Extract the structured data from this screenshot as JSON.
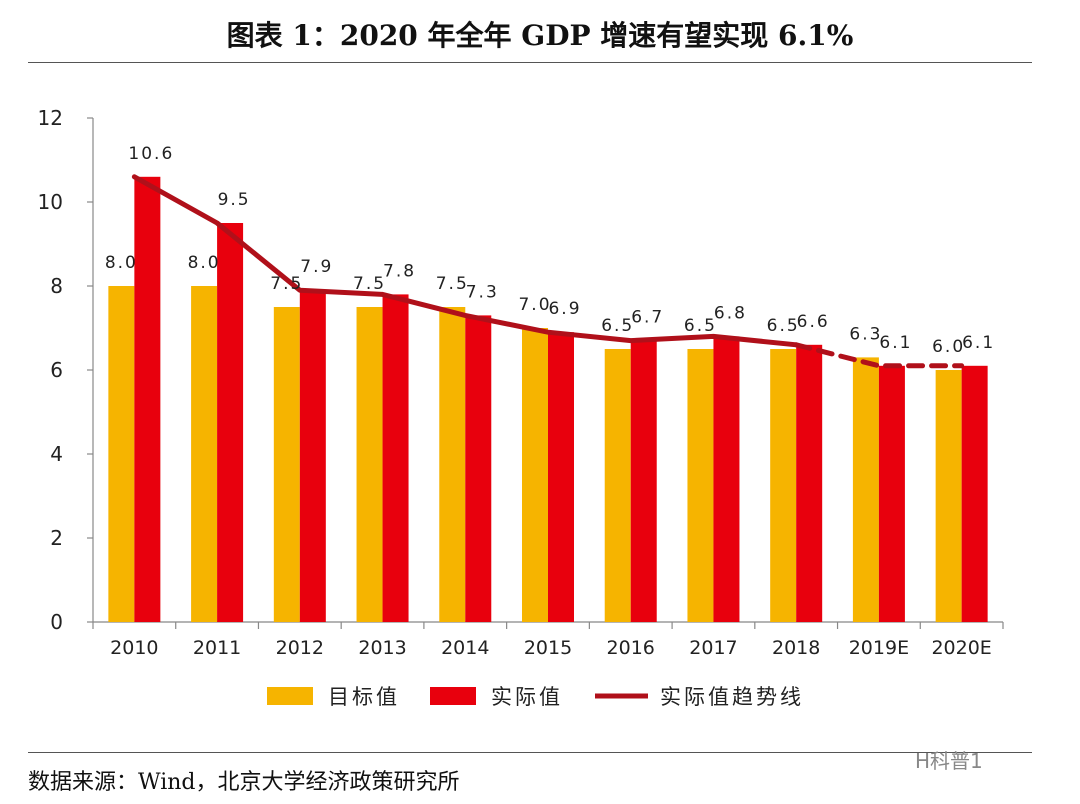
{
  "header": {
    "title": "图表 1：2020 年全年 GDP 增速有望实现 6.1%"
  },
  "footer": {
    "source": "数据来源：Wind，北京大学经济政策研究所",
    "watermark": "H科普1"
  },
  "colors": {
    "target": "#f6b400",
    "actual": "#e8000d",
    "trend": "#b0101a",
    "axis": "#888888"
  },
  "chart_data": {
    "type": "bar",
    "categories": [
      "2010",
      "2011",
      "2012",
      "2013",
      "2014",
      "2015",
      "2016",
      "2017",
      "2018",
      "2019E",
      "2020E"
    ],
    "series": [
      {
        "name": "目标值",
        "type": "bar",
        "values": [
          8.0,
          8.0,
          7.5,
          7.5,
          7.5,
          7.0,
          6.5,
          6.5,
          6.5,
          6.3,
          6.0
        ],
        "labels": [
          "8.0",
          "8.0",
          "7.5",
          "7.5",
          "7.5",
          "7.0",
          "6.5",
          "6.5",
          "6.5",
          "6.3",
          "6.0"
        ]
      },
      {
        "name": "实际值",
        "type": "bar",
        "values": [
          10.6,
          9.5,
          7.9,
          7.8,
          7.3,
          6.9,
          6.7,
          6.8,
          6.6,
          6.1,
          6.1
        ],
        "labels": [
          "10.6",
          "9.5",
          "7.9",
          "7.8",
          "7.3",
          "6.9",
          "6.7",
          "6.8",
          "6.6",
          "6.1",
          "6.1"
        ]
      },
      {
        "name": "实际值趋势线",
        "type": "line",
        "values": [
          10.6,
          9.5,
          7.9,
          7.8,
          7.3,
          6.9,
          6.7,
          6.8,
          6.6,
          6.1,
          6.1
        ],
        "dashed_from_index": 8
      }
    ],
    "ylim": [
      0,
      12
    ],
    "yticks": [
      "0",
      "2",
      "4",
      "6",
      "8",
      "10",
      "12"
    ],
    "legend_position": "bottom",
    "grid": false
  }
}
